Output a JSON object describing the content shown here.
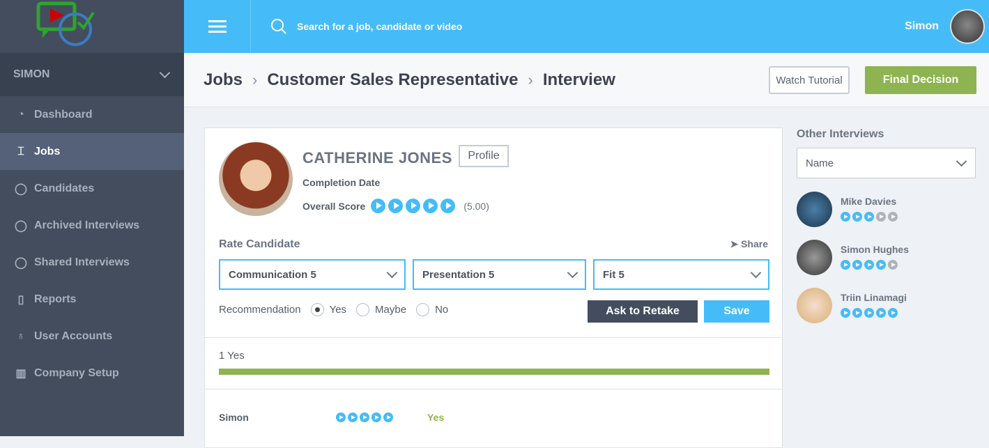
{
  "sidebar": {
    "user": "SIMON",
    "items": [
      {
        "label": "Dashboard",
        "icon": "dashboard-icon"
      },
      {
        "label": "Jobs",
        "icon": "paint-roller-icon",
        "active": true
      },
      {
        "label": "Candidates",
        "icon": "user-icon"
      },
      {
        "label": "Archived Interviews",
        "icon": "user-icon"
      },
      {
        "label": "Shared Interviews",
        "icon": "user-icon"
      },
      {
        "label": "Reports",
        "icon": "document-icon"
      },
      {
        "label": "User Accounts",
        "icon": "award-icon"
      },
      {
        "label": "Company Setup",
        "icon": "factory-icon"
      }
    ]
  },
  "topbar": {
    "search_placeholder": "Search for a job, candidate or video",
    "user_name": "Simon"
  },
  "header": {
    "breadcrumbs": [
      "Jobs",
      "Customer Sales Representative",
      "Interview"
    ],
    "watch_tutorial": "Watch Tutorial",
    "final_decision": "Final Decision"
  },
  "candidate": {
    "name": "CATHERINE JONES",
    "profile_label": "Profile",
    "completion_label": "Completion Date",
    "score_label": "Overall Score",
    "score": 5,
    "score_text": "(5.00)"
  },
  "rating": {
    "title": "Rate Candidate",
    "share": "Share",
    "selects": [
      "Communication 5",
      "Presentation 5",
      "Fit 5"
    ],
    "recommendation_label": "Recommendation",
    "options": [
      "Yes",
      "Maybe",
      "No"
    ],
    "selected": "Yes",
    "retake": "Ask to Retake",
    "save": "Save"
  },
  "summary": {
    "count_text": "1 Yes",
    "yes_fraction": 1.0
  },
  "votes": [
    {
      "name": "Simon",
      "score": 5,
      "decision": "Yes"
    }
  ],
  "other": {
    "title": "Other Interviews",
    "sort_value": "Name",
    "items": [
      {
        "name": "Mike Davies",
        "score": 3
      },
      {
        "name": "Simon Hughes",
        "score": 4
      },
      {
        "name": "Triin Linamagi",
        "score": 4.5
      }
    ]
  },
  "colors": {
    "accent": "#45bcf7",
    "success": "#8db451",
    "sidebar": "#434d5d"
  }
}
